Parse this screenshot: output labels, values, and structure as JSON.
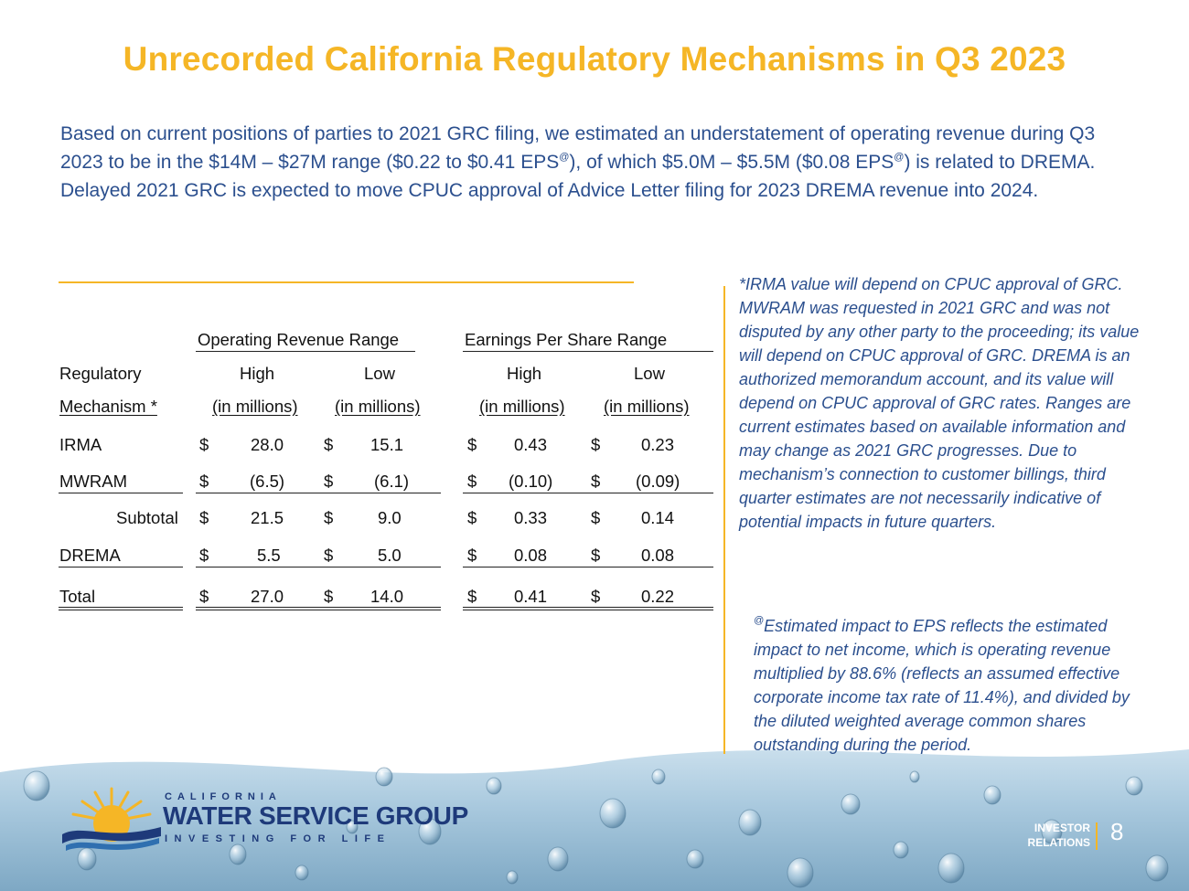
{
  "title": "Unrecorded California Regulatory Mechanisms in Q3 2023",
  "intro": {
    "part1": "Based on current positions of parties to 2021 GRC filing, we estimated an understatement of operating revenue during Q3 2023 to be in the $14M – $27M range ($0.22 to $0.41 EPS",
    "sup1": "@",
    "part2": "), of which $5.0M – $5.5M ($0.08  EPS",
    "sup2": "@",
    "part3": ") is related to DREMA.  Delayed 2021 GRC is expected to move CPUC approval of Advice Letter filing for 2023 DREMA revenue into 2024."
  },
  "table": {
    "group_headers": [
      "Operating Revenue Range",
      "Earnings Per Share Range"
    ],
    "row_header_1": "Regulatory",
    "row_header_2": "Mechanism *",
    "col_labels": [
      "High",
      "Low",
      "High",
      "Low"
    ],
    "col_units": [
      "(in millions)",
      "(in millions)",
      "(in millions)",
      "(in millions)"
    ],
    "currency": "$",
    "rows": [
      {
        "label": "IRMA",
        "values": [
          "28.0",
          "15.1",
          "0.43",
          "0.23"
        ]
      },
      {
        "label": "MWRAM",
        "values": [
          "(6.5)",
          "(6.1)",
          "(0.10)",
          "(0.09)"
        ]
      },
      {
        "label": "Subtotal",
        "values": [
          "21.5",
          "9.0",
          "0.33",
          "0.14"
        ]
      },
      {
        "label": "DREMA",
        "values": [
          "5.5",
          "5.0",
          "0.08",
          "0.08"
        ]
      },
      {
        "label": "Total",
        "values": [
          "27.0",
          "14.0",
          "0.41",
          "0.22"
        ]
      }
    ]
  },
  "notes": {
    "note1": "*IRMA value will depend on CPUC approval of GRC. MWRAM was requested in 2021 GRC and was not disputed by any other party to the proceeding; its value will depend on CPUC approval of GRC. DREMA is an authorized memorandum account, and its value will depend on CPUC approval of GRC rates. Ranges are current estimates based on available information and may change as 2021 GRC progresses. Due to mechanism’s connection to customer billings, third quarter estimates are not necessarily indicative of potential impacts in future quarters.",
    "note2_sup": "@",
    "note2": "Estimated impact to EPS reflects the estimated impact to net income, which is operating revenue multiplied by 88.6% (reflects an assumed effective corporate income tax rate of 11.4%), and divided by the diluted weighted average common shares outstanding during the period."
  },
  "logo": {
    "line1": "CALIFORNIA",
    "line2": "WATER SERVICE GROUP",
    "line3": "INVESTING FOR LIFE"
  },
  "footer": {
    "investor_line1": "INVESTOR",
    "investor_line2": "RELATIONS",
    "page_number": "8"
  },
  "colors": {
    "title": "#f5b626",
    "body_text": "#2b4f8e",
    "logo_blue": "#1e3a7a"
  }
}
